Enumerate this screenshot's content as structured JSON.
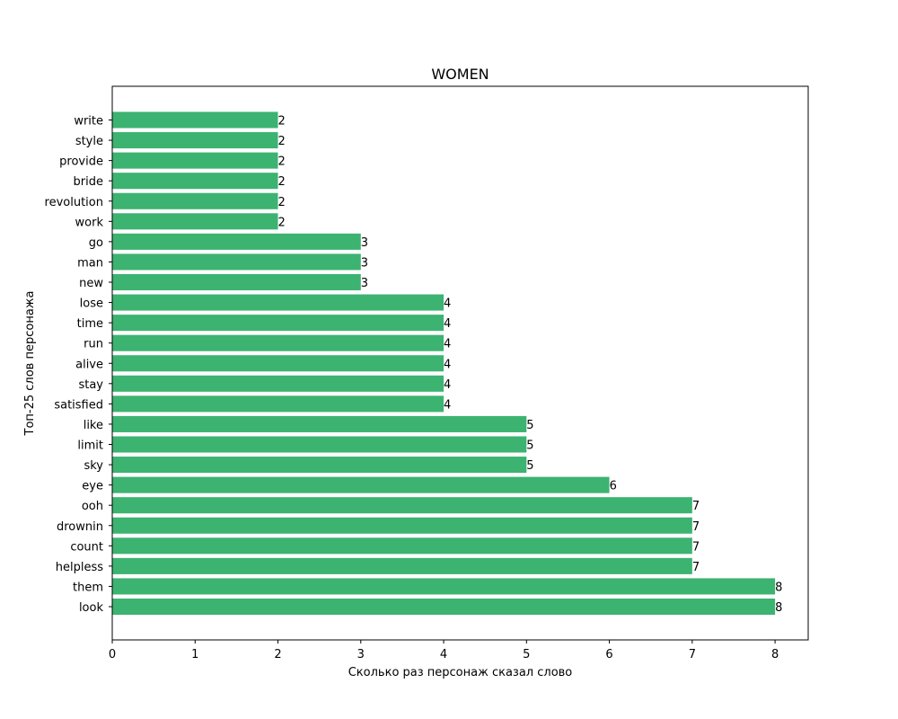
{
  "chart_data": {
    "type": "bar",
    "orientation": "horizontal",
    "title": "WOMEN",
    "xlabel": "Сколько раз персонаж сказал слово",
    "ylabel": "Топ-25 слов персонажа",
    "xlim": [
      0,
      8.4
    ],
    "xticks": [
      0,
      1,
      2,
      3,
      4,
      5,
      6,
      7,
      8
    ],
    "grid": false,
    "bar_color": "#3cb371",
    "categories": [
      "look",
      "them",
      "helpless",
      "count",
      "drownin",
      "ooh",
      "eye",
      "sky",
      "limit",
      "like",
      "satisfied",
      "stay",
      "alive",
      "run",
      "time",
      "lose",
      "new",
      "man",
      "go",
      "work",
      "revolution",
      "bride",
      "provide",
      "style",
      "write"
    ],
    "values": [
      8,
      8,
      7,
      7,
      7,
      7,
      6,
      5,
      5,
      5,
      4,
      4,
      4,
      4,
      4,
      4,
      3,
      3,
      3,
      2,
      2,
      2,
      2,
      2,
      2
    ],
    "data_labels": [
      "8",
      "8",
      "7",
      "7",
      "7",
      "7",
      "6",
      "5",
      "5",
      "5",
      "4",
      "4",
      "4",
      "4",
      "4",
      "4",
      "3",
      "3",
      "3",
      "2",
      "2",
      "2",
      "2",
      "2",
      "2"
    ]
  }
}
